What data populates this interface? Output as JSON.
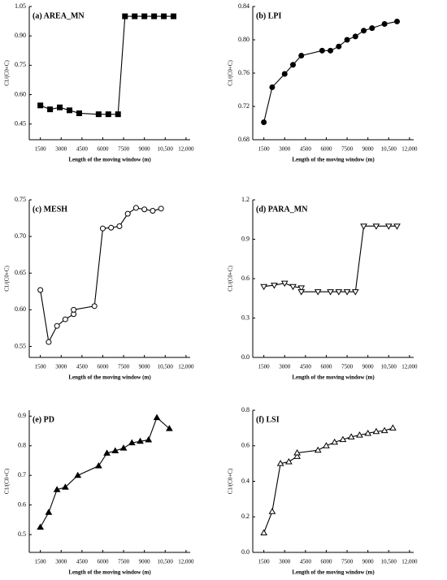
{
  "chart_data": [
    {
      "type": "line",
      "title": "(a) AREA_MN",
      "xlabel": "Length of the moving window (m)",
      "ylabel": "C1/(C0+C)",
      "color": "#000000",
      "marker": "square",
      "marker_filled": true,
      "x": [
        1500,
        2200,
        2900,
        3600,
        4300,
        5700,
        6400,
        7100,
        7600,
        8300,
        9000,
        9700,
        10400,
        11100
      ],
      "values": [
        0.545,
        0.525,
        0.535,
        0.52,
        0.505,
        0.5,
        0.5,
        0.5,
        1.0,
        1.0,
        1.0,
        1.0,
        1.0,
        1.0
      ],
      "xlim": [
        700,
        12300
      ],
      "xticks": [
        1500,
        3000,
        4500,
        6000,
        7500,
        9000,
        {
          "value": 10500,
          "label": "10,500"
        },
        {
          "value": 12000,
          "label": "12,000"
        }
      ],
      "ylim": [
        0.37,
        1.05
      ],
      "yticks": [
        0.45,
        {
          "value": 0.6,
          "label": "0.60"
        },
        0.75,
        {
          "value": 0.9,
          "label": "0.90"
        },
        1.05
      ]
    },
    {
      "type": "line",
      "title": "(b) LPI",
      "xlabel": "Length of the moving window (m)",
      "ylabel": "C1/(C0+C)",
      "color": "#000000",
      "marker": "circle",
      "marker_filled": true,
      "x": [
        1500,
        2100,
        3000,
        3600,
        4200,
        5700,
        6300,
        6900,
        7500,
        8100,
        8700,
        9300,
        10200,
        11100
      ],
      "values": [
        0.701,
        0.743,
        0.759,
        0.77,
        0.781,
        0.787,
        0.787,
        0.792,
        0.8,
        0.804,
        0.811,
        0.814,
        0.819,
        0.822
      ],
      "xlim": [
        700,
        12300
      ],
      "xticks": [
        1500,
        3000,
        4500,
        6000,
        7500,
        9000,
        {
          "value": 10500,
          "label": "10,500"
        },
        {
          "value": 12000,
          "label": "12,000"
        }
      ],
      "ylim": [
        0.68,
        0.84
      ],
      "yticks": [
        0.68,
        0.72,
        0.76,
        {
          "value": 0.8,
          "label": "0.80"
        },
        0.84
      ]
    },
    {
      "type": "line",
      "title": "(c) MESH",
      "xlabel": "Length of the moving window (m)",
      "ylabel": "C1/(C0+C)",
      "color": "#000000",
      "marker": "circle",
      "marker_filled": false,
      "x": [
        1500,
        2100,
        2700,
        3300,
        3900,
        3900,
        5400,
        6000,
        6600,
        7200,
        7800,
        8400,
        9000,
        9600,
        10200
      ],
      "values": [
        0.627,
        0.556,
        0.578,
        0.587,
        0.594,
        0.6,
        0.605,
        0.711,
        0.712,
        0.714,
        0.731,
        0.739,
        0.737,
        0.735,
        0.738
      ],
      "xlim": [
        700,
        12300
      ],
      "xticks": [
        1500,
        3000,
        4500,
        6000,
        7500,
        9000,
        {
          "value": 10500,
          "label": "10,500"
        },
        {
          "value": 12000,
          "label": "12,000"
        }
      ],
      "ylim": [
        0.535,
        0.75
      ],
      "yticks": [
        0.55,
        {
          "value": 0.6,
          "label": "0.60"
        },
        0.65,
        {
          "value": 0.7,
          "label": "0.70"
        },
        0.75
      ]
    },
    {
      "type": "line",
      "title": "(d) PARA_MN",
      "xlabel": "Length of the moving window (m)",
      "ylabel": "C1/(C0+C)",
      "color": "#000000",
      "marker": "triangle-down",
      "marker_filled": false,
      "x": [
        1500,
        2250,
        3000,
        3600,
        4200,
        4200,
        5400,
        6300,
        6900,
        7500,
        8100,
        8700,
        9600,
        10500,
        11100
      ],
      "values": [
        0.54,
        0.55,
        0.565,
        0.54,
        0.53,
        0.5,
        0.5,
        0.5,
        0.5,
        0.5,
        0.5,
        1.0,
        1.0,
        1.0,
        1.0
      ],
      "xlim": [
        700,
        12300
      ],
      "xticks": [
        1500,
        3000,
        4500,
        6000,
        7500,
        9000,
        {
          "value": 10500,
          "label": "10,500"
        },
        {
          "value": 12000,
          "label": "12,000"
        }
      ],
      "ylim": [
        0,
        1.2
      ],
      "yticks": [
        {
          "value": 0,
          "label": "0.0"
        },
        0.3,
        0.6,
        0.9,
        1.2
      ]
    },
    {
      "type": "line",
      "title": "(e) PD",
      "xlabel": "Length of the moving window (m)",
      "ylabel": "C1/(C0+C)",
      "color": "#000000",
      "marker": "triangle-up",
      "marker_filled": true,
      "x": [
        1500,
        2100,
        2700,
        3300,
        4200,
        5700,
        6300,
        6900,
        7500,
        8100,
        8700,
        9300,
        9900,
        10800
      ],
      "values": [
        0.525,
        0.575,
        0.652,
        0.66,
        0.7,
        0.732,
        0.775,
        0.783,
        0.792,
        0.81,
        0.815,
        0.82,
        0.895,
        0.858
      ],
      "xlim": [
        700,
        12300
      ],
      "xticks": [
        1500,
        3000,
        4500,
        6000,
        7500,
        9000,
        {
          "value": 10500,
          "label": "10,500"
        },
        {
          "value": 12000,
          "label": "12,000"
        }
      ],
      "ylim": [
        0.44,
        0.92
      ],
      "yticks": [
        0.5,
        0.6,
        0.7,
        0.8,
        0.9
      ]
    },
    {
      "type": "line",
      "title": "(f) LSI",
      "xlabel": "Length of the moving window (m)",
      "ylabel": "C1/(C0+C)",
      "color": "#000000",
      "marker": "triangle-up",
      "marker_filled": false,
      "x": [
        1500,
        2100,
        2700,
        3300,
        3900,
        3900,
        5400,
        6000,
        6600,
        7200,
        7800,
        8400,
        9000,
        9600,
        10200,
        10800
      ],
      "values": [
        0.11,
        0.23,
        0.5,
        0.51,
        0.54,
        0.56,
        0.575,
        0.6,
        0.62,
        0.635,
        0.65,
        0.66,
        0.67,
        0.68,
        0.685,
        0.7
      ],
      "xlim": [
        700,
        12300
      ],
      "xticks": [
        1500,
        3000,
        4500,
        6000,
        7500,
        9000,
        {
          "value": 10500,
          "label": "10,500"
        },
        {
          "value": 12000,
          "label": "12,000"
        }
      ],
      "ylim": [
        0,
        0.8
      ],
      "yticks": [
        {
          "value": 0,
          "label": "0.0"
        },
        0.2,
        0.4,
        0.6,
        0.8
      ]
    }
  ]
}
